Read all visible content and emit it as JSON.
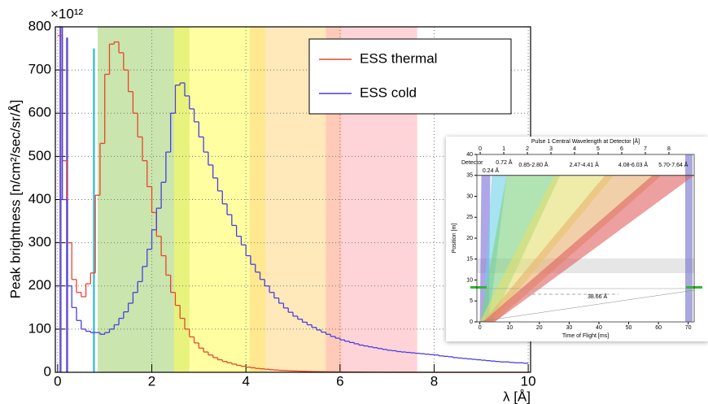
{
  "chart_data": [
    {
      "type": "histogram",
      "y_multiplier": "×10¹²",
      "y_label": "Peak brightness [n/cm²/sec/sr/Å]",
      "x_label": "λ [Å]",
      "bins": [
        0,
        0.1,
        0.2,
        0.3,
        0.4,
        0.5,
        0.6,
        0.7,
        0.8,
        0.9,
        1,
        1.1,
        1.2,
        1.3,
        1.4,
        1.5,
        1.6,
        1.7,
        1.8,
        1.9,
        2,
        2.1,
        2.2,
        2.3,
        2.4,
        2.5,
        2.6,
        2.7,
        2.8,
        2.9,
        3,
        3.1,
        3.2,
        3.3,
        3.4,
        3.5,
        3.6,
        3.7,
        3.8,
        3.9,
        4,
        4.1,
        4.2,
        4.3,
        4.4,
        4.5,
        4.6,
        4.7,
        4.8,
        4.9,
        5,
        5.1,
        5.2,
        5.3,
        5.4,
        5.5,
        5.6,
        5.7,
        5.8,
        5.9,
        6,
        6.1,
        6.2,
        6.3,
        6.4,
        6.5,
        6.6,
        6.7,
        6.8,
        6.9,
        7,
        7.1,
        7.2,
        7.3,
        7.4,
        7.5,
        7.6,
        7.7,
        7.8,
        7.9,
        8,
        8.1,
        8.2,
        8.3,
        8.4,
        8.5,
        8.6,
        8.7,
        8.8,
        8.9,
        9,
        9.1,
        9.2,
        9.3,
        9.4,
        9.5,
        9.6,
        9.7,
        9.8,
        9.9,
        10
      ],
      "series": [
        {
          "name": "ESS thermal",
          "color": "#e8462a",
          "values": [
            780,
            490,
            300,
            215,
            185,
            175,
            205,
            230,
            410,
            530,
            690,
            760,
            765,
            740,
            700,
            650,
            600,
            545,
            490,
            430,
            370,
            315,
            270,
            225,
            185,
            155,
            125,
            100,
            82,
            68,
            56,
            47,
            40,
            34,
            29,
            25,
            22,
            19,
            16,
            14,
            12,
            10.5,
            9,
            8,
            7,
            6,
            5.2,
            4.5,
            4,
            3.5,
            3,
            2.6,
            2.3,
            2,
            1.7,
            1.5,
            1.3,
            1.1,
            1,
            0.9,
            0.8,
            0.7,
            0.6,
            0.5,
            0.45,
            0.4,
            0.35,
            0.3,
            0.25,
            0.2,
            0.2,
            0.2,
            0.1,
            0.1,
            0.1,
            0.1,
            0.1,
            0.1,
            0.1,
            0.1,
            0,
            0,
            0,
            0,
            0,
            0,
            0,
            0,
            0,
            0,
            0,
            0,
            0,
            0,
            0,
            0,
            0,
            0,
            0,
            0
          ]
        },
        {
          "name": "ESS cold",
          "color": "#4a3ee0",
          "values": [
            800,
            400,
            200,
            150,
            120,
            100,
            95,
            92,
            92,
            88,
            92,
            100,
            110,
            125,
            140,
            160,
            185,
            210,
            245,
            285,
            330,
            380,
            440,
            510,
            600,
            665,
            670,
            640,
            610,
            580,
            545,
            510,
            480,
            450,
            420,
            390,
            365,
            340,
            315,
            295,
            270,
            250,
            232,
            215,
            200,
            185,
            172,
            160,
            149,
            139,
            130,
            123,
            116,
            110,
            104,
            98,
            93,
            88,
            83,
            79,
            75,
            72,
            69,
            66,
            63,
            61,
            59,
            57,
            55,
            53,
            51,
            50,
            48,
            47,
            46,
            45,
            44,
            43,
            42,
            41,
            40,
            38,
            37,
            36,
            34,
            33,
            32,
            31,
            30,
            29,
            28,
            27,
            26,
            25,
            24,
            24,
            23,
            22,
            22,
            21
          ]
        }
      ],
      "bands": [
        {
          "from": 0.85,
          "to": 2.8,
          "color": "#9fcf6a"
        },
        {
          "from": 2.47,
          "to": 4.41,
          "color": "#ffff55"
        },
        {
          "from": 4.08,
          "to": 6.03,
          "color": "#ffd580"
        },
        {
          "from": 5.7,
          "to": 7.64,
          "color": "#ffb0b8"
        }
      ],
      "markers": [
        {
          "x": 0.06,
          "top": 800,
          "color": "#6a4fd8"
        },
        {
          "x": 0.2,
          "top": 775,
          "color": "#6a4fd8"
        },
        {
          "x": 0.77,
          "top": 750,
          "color": "#45bde0"
        }
      ],
      "xlim": [
        -0.05,
        10.05
      ],
      "ylim": [
        0,
        800
      ],
      "xticks": [
        0,
        2,
        4,
        6,
        8,
        10
      ],
      "yticks": [
        0,
        100,
        200,
        300,
        400,
        500,
        600,
        700,
        800
      ],
      "grid": true,
      "legend": "upper right"
    },
    {
      "type": "band",
      "title": "Pulse 1 Central Wavelength at Detector [Å]",
      "y_label": "Position [m]",
      "x_label": "Time of Flight [ms]",
      "detector_label": "Detector",
      "annotation": "38.66 Å",
      "detector_position": 35,
      "bands": [
        {
          "label": "0.24 Å",
          "color": "#7a6ad8",
          "source": [
            0,
            3
          ],
          "detector": [
            0.5,
            3.5
          ]
        },
        {
          "label": "0.72 Å",
          "color": "#6cd0e8",
          "source": [
            1,
            3
          ],
          "detector": [
            4,
            9
          ]
        },
        {
          "label": "0.85-2.80 Å",
          "color": "#7fd07f",
          "source": [
            0,
            4
          ],
          "detector": [
            9,
            27
          ]
        },
        {
          "label": "2.47-4.41 Å",
          "color": "#e4e070",
          "source": [
            0,
            4
          ],
          "detector": [
            25,
            45
          ]
        },
        {
          "label": "4.08-6.03 Å",
          "color": "#e8b070",
          "source": [
            1,
            5
          ],
          "detector": [
            42,
            61
          ]
        },
        {
          "label": "5.70-7.64 Å",
          "color": "#e06060",
          "source": [
            1,
            5
          ],
          "detector": [
            58,
            72
          ]
        }
      ],
      "xlim": [
        -1,
        72
      ],
      "ylim": [
        0,
        40
      ],
      "x2lim": [
        -0.14,
        9.07
      ],
      "xticks": [
        0,
        10,
        20,
        30,
        40,
        50,
        60,
        70
      ],
      "yticks": [
        0,
        5,
        10,
        15,
        20,
        25,
        30,
        35,
        40
      ],
      "x2ticks": [
        0,
        1,
        2,
        3,
        4,
        5,
        6,
        7,
        8
      ]
    }
  ]
}
